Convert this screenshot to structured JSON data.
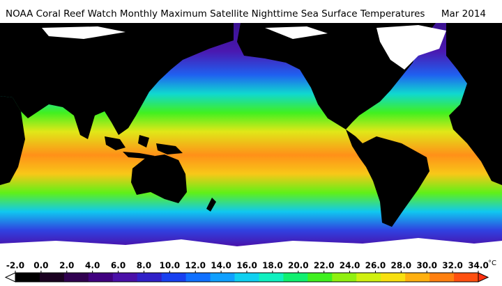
{
  "title": "NOAA Coral Reef Watch Monthly Maximum Satellite Nighttime Sea Surface Temperatures",
  "date": "Mar 2014",
  "colorbar": {
    "unit": "°C",
    "ticks": [
      {
        "value": -2,
        "label": "-2.0"
      },
      {
        "value": 0,
        "label": "0.0"
      },
      {
        "value": 2,
        "label": "2.0"
      },
      {
        "value": 4,
        "label": "4.0"
      },
      {
        "value": 6,
        "label": "6.0"
      },
      {
        "value": 8,
        "label": "8.0"
      },
      {
        "value": 10,
        "label": "10.0"
      },
      {
        "value": 12,
        "label": "12.0"
      },
      {
        "value": 14,
        "label": "14.0"
      },
      {
        "value": 16,
        "label": "16.0"
      },
      {
        "value": 18,
        "label": "18.0"
      },
      {
        "value": 20,
        "label": "20.0"
      },
      {
        "value": 22,
        "label": "22.0"
      },
      {
        "value": 24,
        "label": "24.0"
      },
      {
        "value": 26,
        "label": "26.0"
      },
      {
        "value": 28,
        "label": "28.0"
      },
      {
        "value": 30,
        "label": "30.0"
      },
      {
        "value": 32,
        "label": "32.0"
      },
      {
        "value": 34,
        "label": "34.0"
      }
    ],
    "colors": [
      "#000000",
      "#1a0020",
      "#300050",
      "#400080",
      "#4a10a8",
      "#3020c8",
      "#1840f0",
      "#1070ff",
      "#10a0ff",
      "#10d0f0",
      "#10f0c0",
      "#10f070",
      "#40f020",
      "#90f010",
      "#d0f010",
      "#f8e010",
      "#ffb010",
      "#ff8010",
      "#ff5010"
    ]
  }
}
